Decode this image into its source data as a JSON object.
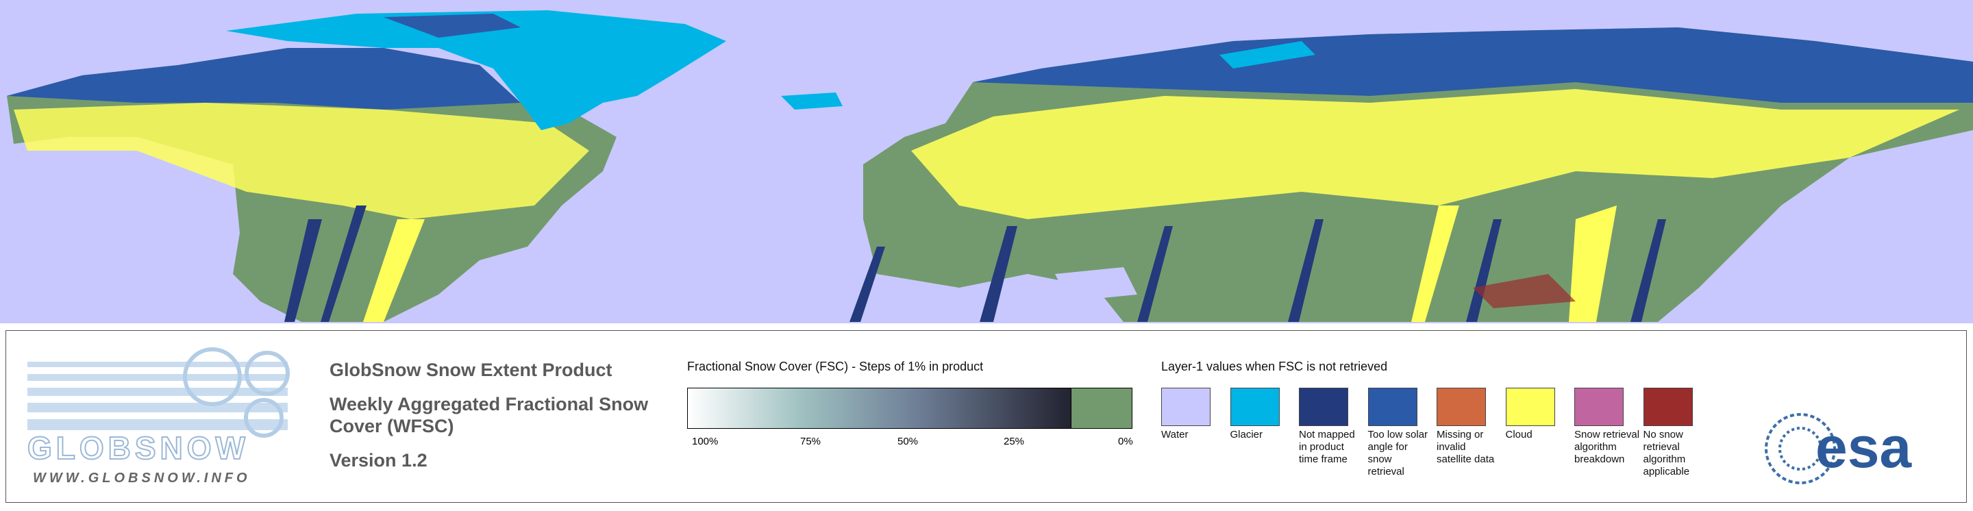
{
  "header": {
    "logo_text": "GLOBSNOW",
    "url": "WWW.GLOBSNOW.INFO",
    "title": "GlobSnow Snow Extent Product",
    "subtitle": "Weekly Aggregated Fractional Snow Cover (WFSC)",
    "version": "Version 1.2"
  },
  "colorbar": {
    "title": "Fractional Snow Cover (FSC) - Steps of 1% in product",
    "ticks": [
      "100%",
      "75%",
      "50%",
      "25%",
      "0%"
    ]
  },
  "layer1": {
    "title": "Layer-1 values when FSC is not retrieved",
    "classes": [
      {
        "label": "Water",
        "color": "#c8c8ff"
      },
      {
        "label": "Glacier",
        "color": "#00b4e6"
      },
      {
        "label": "Not mapped in product time frame",
        "color": "#233a7c"
      },
      {
        "label": "Too low solar angle for snow retrieval",
        "color": "#2b5aa8"
      },
      {
        "label": "Missing or invalid satellite data",
        "color": "#d06840"
      },
      {
        "label": "Cloud",
        "color": "#ffff5a"
      },
      {
        "label": "Snow retrieval algorithm breakdown",
        "color": "#c065a0"
      },
      {
        "label": "No snow retrieval algorithm applicable",
        "color": "#9a2c2c"
      }
    ]
  },
  "esa_logo": "esa"
}
